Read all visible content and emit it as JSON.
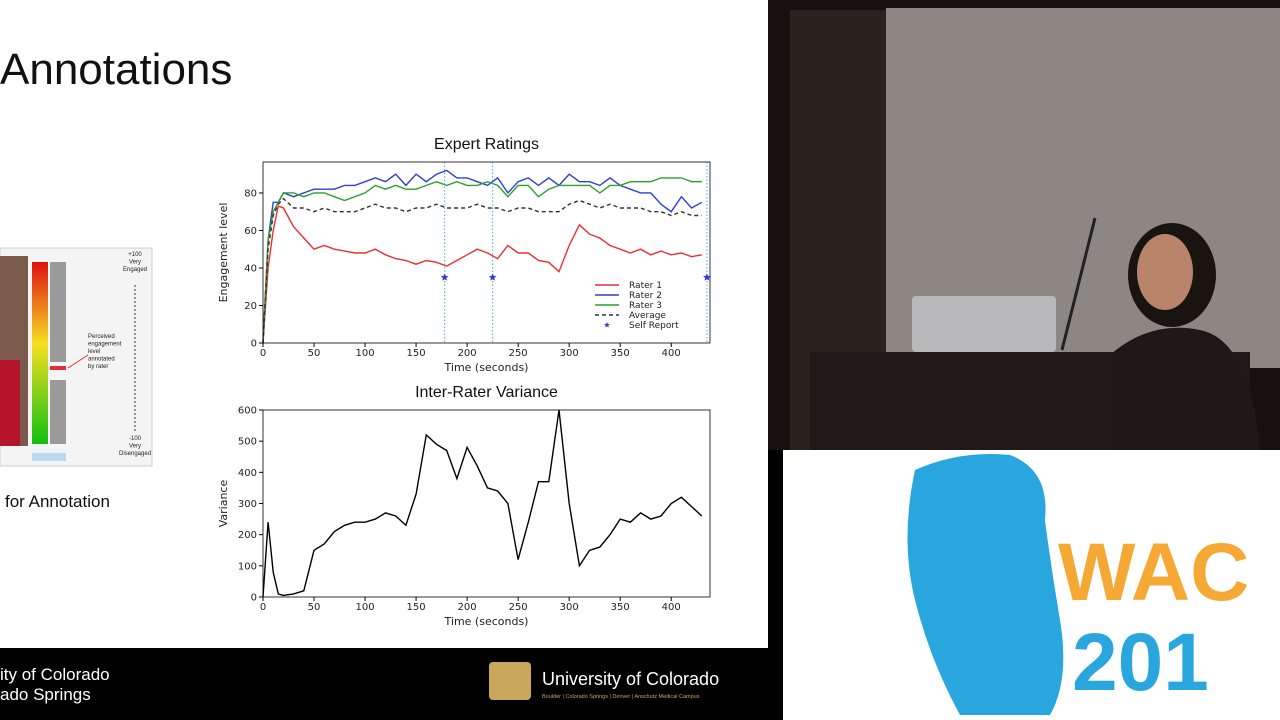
{
  "slide": {
    "title": "Annotations",
    "caption": "for Annotation",
    "footer_left": [
      "ity of Colorado",
      "ado Springs"
    ],
    "footer_right": "University of Colorado",
    "footer_right_sub": "Boulder | Colorado Springs | Denver | Anschutz Medical Campus",
    "tool_labels": {
      "top": [
        "+100",
        "Very",
        "Engaged"
      ],
      "middle": [
        "Perceived",
        "engagement",
        "level",
        "annotated",
        "by rater"
      ],
      "bottom": [
        "-100",
        "Very",
        "Disengaged"
      ]
    }
  },
  "logo": {
    "line1": "WAC",
    "line2": "201"
  },
  "chart_data": [
    {
      "type": "line",
      "title": "Expert Ratings",
      "xlabel": "Time (seconds)",
      "ylabel": "Engagement level",
      "x": [
        0,
        5,
        10,
        15,
        20,
        30,
        40,
        50,
        60,
        70,
        80,
        90,
        100,
        110,
        120,
        130,
        140,
        150,
        160,
        170,
        180,
        190,
        200,
        210,
        220,
        230,
        240,
        250,
        260,
        270,
        280,
        290,
        300,
        310,
        320,
        330,
        340,
        350,
        360,
        370,
        380,
        390,
        400,
        410,
        420,
        430
      ],
      "series": [
        {
          "name": "Rater 1",
          "color": "#e8312f",
          "values": [
            0,
            40,
            60,
            73,
            72,
            62,
            56,
            50,
            52,
            50,
            49,
            48,
            48,
            50,
            47,
            45,
            44,
            42,
            44,
            43,
            41,
            44,
            47,
            50,
            48,
            45,
            52,
            48,
            48,
            44,
            43,
            38,
            52,
            63,
            58,
            56,
            52,
            50,
            48,
            50,
            47,
            49,
            47,
            48,
            46,
            47
          ]
        },
        {
          "name": "Rater 2",
          "color": "#2c3fd6",
          "values": [
            0,
            55,
            75,
            75,
            80,
            78,
            80,
            82,
            82,
            82,
            84,
            84,
            86,
            88,
            86,
            90,
            84,
            90,
            86,
            90,
            92,
            88,
            88,
            86,
            84,
            88,
            80,
            86,
            88,
            84,
            88,
            84,
            90,
            86,
            86,
            84,
            88,
            84,
            82,
            80,
            80,
            74,
            70,
            78,
            72,
            75
          ]
        },
        {
          "name": "Rater 3",
          "color": "#2ca02c",
          "values": [
            0,
            55,
            70,
            75,
            80,
            80,
            78,
            80,
            80,
            78,
            76,
            78,
            80,
            84,
            82,
            84,
            82,
            82,
            84,
            86,
            84,
            86,
            84,
            84,
            86,
            84,
            78,
            84,
            84,
            78,
            82,
            84,
            84,
            84,
            84,
            80,
            84,
            84,
            86,
            86,
            86,
            88,
            88,
            88,
            86,
            86
          ]
        },
        {
          "name": "Average",
          "color": "#333333",
          "dash": true,
          "values": [
            0,
            50,
            68,
            74,
            77,
            72,
            72,
            70,
            72,
            70,
            70,
            70,
            72,
            74,
            72,
            72,
            70,
            72,
            72,
            74,
            72,
            72,
            72,
            74,
            72,
            72,
            70,
            72,
            72,
            70,
            70,
            70,
            74,
            76,
            74,
            72,
            74,
            72,
            72,
            72,
            70,
            70,
            68,
            70,
            68,
            68
          ]
        },
        {
          "name": "Self Report",
          "color": "#2c3fd6",
          "marker": "star",
          "x": [
            178,
            225,
            435
          ],
          "values": [
            35,
            35,
            35
          ]
        }
      ],
      "xlim": [
        0,
        438
      ],
      "ylim": [
        0,
        96.5
      ],
      "xticks": [
        0,
        50,
        100,
        150,
        200,
        250,
        300,
        350,
        400
      ],
      "yticks": [
        0,
        20,
        40,
        60,
        80
      ],
      "legend": "lower right"
    },
    {
      "type": "line",
      "title": "Inter-Rater Variance",
      "xlabel": "Time (seconds)",
      "ylabel": "Variance",
      "color": "#000000",
      "x": [
        0,
        5,
        10,
        15,
        20,
        30,
        40,
        50,
        60,
        70,
        80,
        90,
        100,
        110,
        120,
        130,
        140,
        150,
        160,
        170,
        180,
        190,
        200,
        210,
        220,
        230,
        240,
        250,
        260,
        270,
        280,
        290,
        300,
        310,
        320,
        330,
        340,
        350,
        360,
        370,
        380,
        390,
        400,
        410,
        420,
        430
      ],
      "values": [
        0,
        240,
        80,
        10,
        5,
        10,
        20,
        150,
        170,
        210,
        230,
        240,
        240,
        250,
        270,
        260,
        230,
        330,
        520,
        490,
        470,
        380,
        480,
        420,
        350,
        340,
        300,
        120,
        240,
        370,
        370,
        600,
        300,
        100,
        150,
        160,
        200,
        250,
        240,
        270,
        250,
        260,
        300,
        320,
        290,
        260
      ],
      "xlim": [
        0,
        438
      ],
      "ylim": [
        0,
        600
      ],
      "xticks": [
        0,
        50,
        100,
        150,
        200,
        250,
        300,
        350,
        400
      ],
      "yticks": [
        0,
        100,
        200,
        300,
        400,
        500,
        600
      ]
    }
  ]
}
